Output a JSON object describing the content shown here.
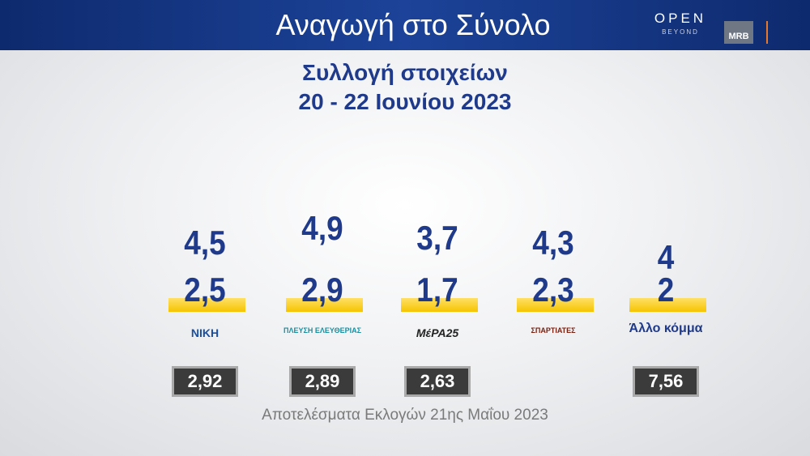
{
  "header": {
    "title": "Αναγωγή στο Σύνολο",
    "brand": "OPEN",
    "brand_sub": "BEYOND",
    "pollster": "MRB"
  },
  "subtitle": [
    "Συλλογή στοιχείων",
    "20 - 22 Ιουνίου 2023"
  ],
  "parties": [
    {
      "name": "ΝΙΚΗ",
      "top": "4,5",
      "bottom": "2,5",
      "previous": "2,92"
    },
    {
      "name": "ΠΛΕΥΣΗ ΕΛΕΥΘΕΡΙΑΣ",
      "top": "4,9",
      "bottom": "2,9",
      "previous": "2,89"
    },
    {
      "name": "ΜέΡΑ25",
      "top": "3,7",
      "bottom": "1,7",
      "previous": "2,63"
    },
    {
      "name": "ΣΠΑΡΤΙΑΤΕΣ",
      "top": "4,3",
      "bottom": "2,3"
    },
    {
      "name": "Άλλο κόμμα",
      "top": "4",
      "bottom": "2",
      "previous": "7,56"
    }
  ],
  "footer": "Αποτελέσματα Εκλογών 21ης Μαΐου 2023"
}
